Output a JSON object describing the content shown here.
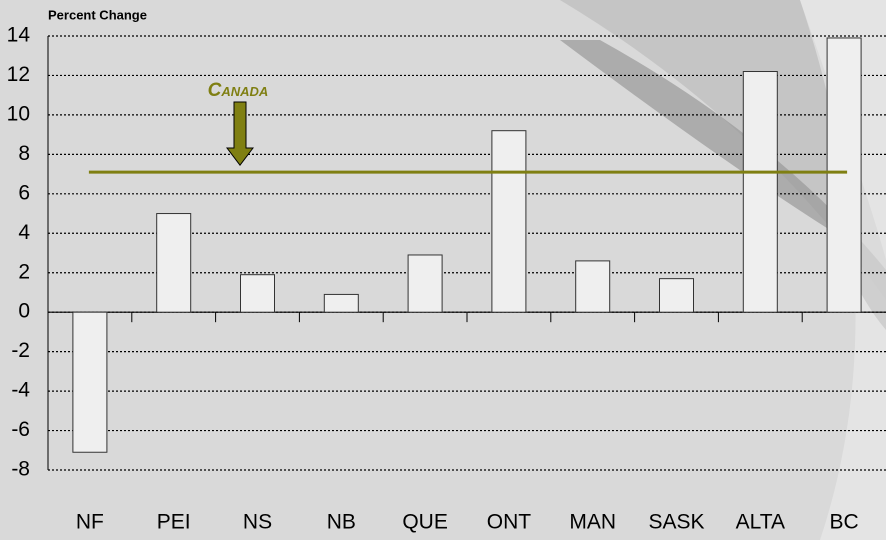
{
  "chart_data": {
    "type": "bar",
    "y_axis_label": "Percent Change",
    "categories": [
      "NF",
      "PEI",
      "NS",
      "NB",
      "QUE",
      "ONT",
      "MAN",
      "SASK",
      "ALTA",
      "BC"
    ],
    "values": [
      -7.1,
      5.0,
      1.9,
      0.9,
      2.9,
      9.2,
      2.6,
      1.7,
      12.2,
      13.9
    ],
    "color": "#efefef",
    "ylim": [
      -8,
      14
    ],
    "yticks": [
      -8,
      -6,
      -4,
      -2,
      0,
      2,
      4,
      6,
      8,
      10,
      12,
      14
    ],
    "grid": true,
    "reference_line": {
      "label": "Canada",
      "value": 7.1,
      "color": "#7f7f12"
    }
  }
}
